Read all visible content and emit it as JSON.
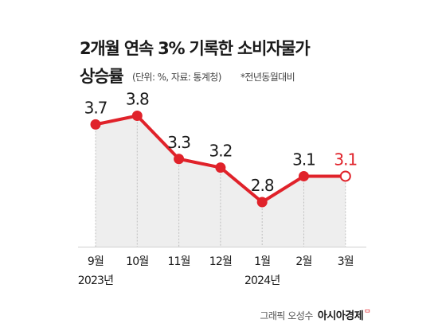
{
  "title_line1": "2개월 연속 3% 기록한 소비자물가",
  "title_line2": "상승률",
  "unit_note": "(단위: %, 자료: 통계청)",
  "basis_note": "*전년동월대비",
  "credit": {
    "label": "그래픽 오성수",
    "brand": "아시아경제",
    "brand_mark": "ᄆ"
  },
  "colors": {
    "line": "#e0222a",
    "area": "#eeeeee",
    "highlight_label": "#e0222a",
    "label": "#1a1a1a"
  },
  "chart_data": {
    "type": "line",
    "categories": [
      "9월",
      "10월",
      "11월",
      "12월",
      "1월",
      "2월",
      "3월"
    ],
    "year_labels": [
      "2023년",
      "",
      "",
      "",
      "2024년",
      "",
      ""
    ],
    "values": [
      3.7,
      3.8,
      3.3,
      3.2,
      2.8,
      3.1,
      3.1
    ],
    "value_labels": [
      "3.7",
      "3.8",
      "3.3",
      "3.2",
      "2.8",
      "3.1",
      "3.1"
    ],
    "highlight_last": true,
    "grid": false,
    "ylim": [
      0,
      3.8
    ]
  }
}
